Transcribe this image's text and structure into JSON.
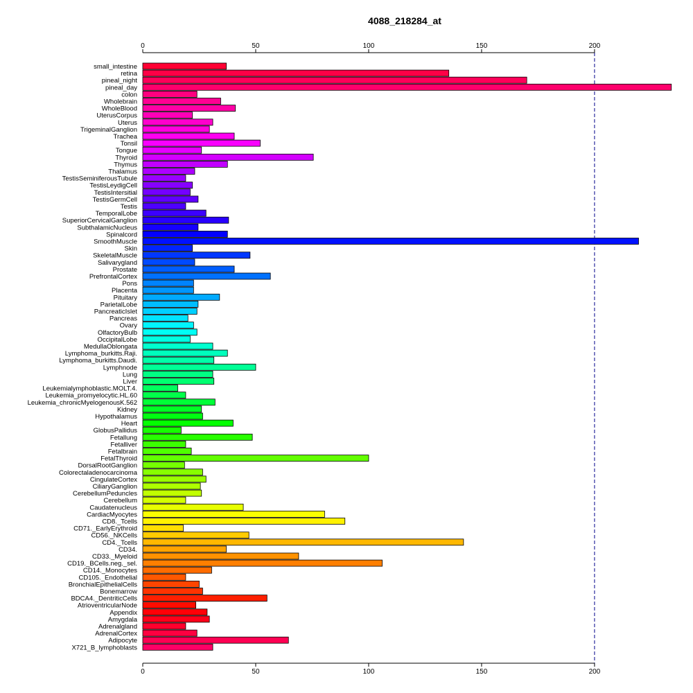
{
  "chart_data": {
    "type": "bar",
    "orientation": "horizontal",
    "title": "4088_218284_at",
    "xlabel": "",
    "ylabel": "",
    "xlim": [
      0,
      235
    ],
    "x_ticks": [
      0,
      50,
      100,
      150,
      200
    ],
    "reference_line": 200,
    "categories": [
      "small_intestine",
      "retina",
      "pineal_night",
      "pineal_day",
      "colon",
      "Wholebrain",
      "WholeBlood",
      "UterusCorpus",
      "Uterus",
      "TrigeminalGanglion",
      "Trachea",
      "Tonsil",
      "Tongue",
      "Thyroid",
      "Thymus",
      "Thalamus",
      "TestisSeminiferousTubule",
      "TestisLeydigCell",
      "TestisIntersitial",
      "TestisGermCell",
      "Testis",
      "TemporalLobe",
      "SuperiorCervicalGanglion",
      "SubthalamicNucleus",
      "Spinalcord",
      "SmoothMuscle",
      "Skin",
      "SkeletalMuscle",
      "Salivarygland",
      "Prostate",
      "PrefrontalCortex",
      "Pons",
      "Placenta",
      "Pituitary",
      "ParietalLobe",
      "PancreaticIslet",
      "Pancreas",
      "Ovary",
      "OlfactoryBulb",
      "OccipitalLobe",
      "MedullaOblongata",
      "Lymphoma_burkitts.Raji.",
      "Lymphoma_burkitts.Daudi.",
      "Lymphnode",
      "Lung",
      "Liver",
      "Leukemialymphoblastic.MOLT.4.",
      "Leukemia_promyelocytic.HL.60",
      "Leukemia_chronicMyelogenousK.562",
      "Kidney",
      "Hypothalamus",
      "Heart",
      "GlobusPallidus",
      "Fetallung",
      "Fetalliver",
      "Fetalbrain",
      "FetalThyroid",
      "DorsalRootGanglion",
      "Colorectaladenocarcinoma",
      "CingulateCortex",
      "CiliaryGanglion",
      "CerebellumPeduncles",
      "Cerebellum",
      "Caudatenucleus",
      "CardiacMyocytes",
      "CD8._Tcells",
      "CD71._EarlyErythroid",
      "CD56._NKCells",
      "CD4._Tcells",
      "CD34.",
      "CD33._Myeloid",
      "CD19._BCells.neg._sel.",
      "CD14._Monocytes",
      "CD105._Endothelial",
      "BronchialEpithelialCells",
      "Bonemarrow",
      "BDCA4._DentriticCells",
      "AtrioventricularNode",
      "Appendix",
      "Amygdala",
      "Adrenalgland",
      "AdrenalCortex",
      "Adipocyte",
      "X721_B_lymphoblasts"
    ],
    "values": [
      37,
      135.5,
      170,
      234,
      24,
      34.5,
      41,
      22,
      31,
      29.5,
      40.5,
      52,
      26,
      75.5,
      37.5,
      23,
      19,
      22,
      21,
      24.5,
      19,
      28,
      38,
      24.5,
      37.5,
      219.5,
      22,
      47.5,
      23,
      40.5,
      56.5,
      22.5,
      22.5,
      34,
      24.5,
      24,
      20,
      22.5,
      24,
      21,
      31,
      37.5,
      31.5,
      50,
      31,
      31.5,
      15.5,
      19,
      32,
      26,
      26.5,
      40,
      17,
      48.5,
      19,
      21.5,
      100,
      18.5,
      26.5,
      28,
      25.5,
      26,
      19,
      44.5,
      80.5,
      89.5,
      18,
      47,
      142,
      37,
      69,
      106,
      30.5,
      19,
      25,
      26.5,
      55,
      23.5,
      28.5,
      29.5,
      19,
      24,
      64.5,
      31
    ],
    "grid": false,
    "legend": "none"
  }
}
